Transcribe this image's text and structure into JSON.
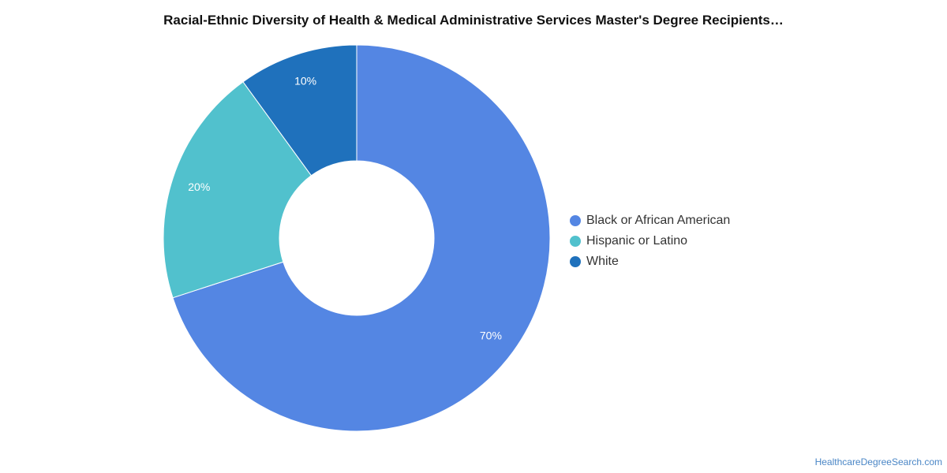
{
  "chart_data": {
    "type": "pie",
    "title": "Racial-Ethnic Diversity of Health & Medical Administrative Services Master's Degree Recipients…",
    "categories": [
      "Black or African American",
      "Hispanic or Latino",
      "White"
    ],
    "values": [
      70,
      20,
      10
    ],
    "value_labels": [
      "70%",
      "20%",
      "10%"
    ],
    "colors": [
      "#5486e3",
      "#51c1cd",
      "#1f71bc"
    ],
    "donut": true,
    "legend_position": "right"
  },
  "footer": {
    "source": "HealthcareDegreeSearch.com"
  }
}
